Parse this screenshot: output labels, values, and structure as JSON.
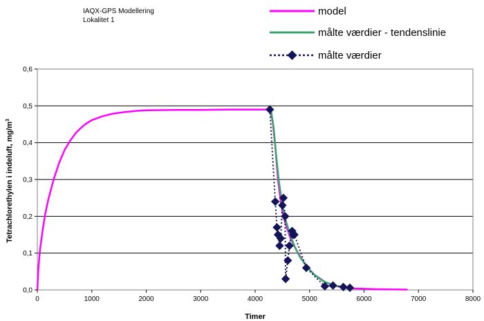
{
  "header_note": {
    "line1": "IAQX-GPS Modellering",
    "line2": "Lokalitet 1"
  },
  "chart_data": {
    "type": "line",
    "title": "",
    "xlabel": "Timer",
    "ylabel": "Tetrachlorethylen i indeluft, mg/m",
    "ylabel_superscript": "3",
    "xlim": [
      0,
      8000
    ],
    "ylim": [
      0,
      0.6
    ],
    "x_ticks": [
      "0",
      "1000",
      "2000",
      "3000",
      "4000",
      "5000",
      "6000",
      "7000",
      "8000"
    ],
    "y_ticks": [
      "0,0",
      "0,1",
      "0,2",
      "0,3",
      "0,4",
      "0,5",
      "0,6"
    ],
    "grid": "horizontal",
    "legend_position": "top-right",
    "series": [
      {
        "name": "model",
        "style": "solid",
        "color": "#ff00ff",
        "points": [
          [
            0,
            0
          ],
          [
            20,
            0.06
          ],
          [
            50,
            0.11
          ],
          [
            100,
            0.165
          ],
          [
            150,
            0.21
          ],
          [
            200,
            0.245
          ],
          [
            300,
            0.3
          ],
          [
            400,
            0.345
          ],
          [
            500,
            0.38
          ],
          [
            600,
            0.405
          ],
          [
            700,
            0.425
          ],
          [
            800,
            0.44
          ],
          [
            900,
            0.452
          ],
          [
            1000,
            0.461
          ],
          [
            1200,
            0.472
          ],
          [
            1400,
            0.479
          ],
          [
            1600,
            0.483
          ],
          [
            1800,
            0.486
          ],
          [
            2000,
            0.488
          ],
          [
            2500,
            0.489
          ],
          [
            3000,
            0.489
          ],
          [
            3500,
            0.49
          ],
          [
            4000,
            0.49
          ],
          [
            4270,
            0.49
          ],
          [
            4320,
            0.46
          ],
          [
            4370,
            0.39
          ],
          [
            4420,
            0.3
          ],
          [
            4470,
            0.24
          ],
          [
            4520,
            0.2
          ],
          [
            4580,
            0.17
          ],
          [
            4650,
            0.14
          ],
          [
            4750,
            0.11
          ],
          [
            4850,
            0.085
          ],
          [
            4950,
            0.063
          ],
          [
            5100,
            0.04
          ],
          [
            5300,
            0.02
          ],
          [
            5500,
            0.01
          ],
          [
            5800,
            0.004
          ],
          [
            6200,
            0.002
          ],
          [
            6800,
            0.001
          ]
        ]
      },
      {
        "name": "målte værdier - tendenslinie",
        "style": "solid",
        "color": "#3aa36a",
        "points": [
          [
            4290,
            0.49
          ],
          [
            4340,
            0.44
          ],
          [
            4390,
            0.36
          ],
          [
            4440,
            0.29
          ],
          [
            4500,
            0.23
          ],
          [
            4560,
            0.19
          ],
          [
            4630,
            0.155
          ],
          [
            4720,
            0.12
          ],
          [
            4820,
            0.09
          ],
          [
            4940,
            0.065
          ],
          [
            5080,
            0.042
          ],
          [
            5250,
            0.024
          ],
          [
            5450,
            0.012
          ],
          [
            5700,
            0.005
          ]
        ]
      },
      {
        "name": "målte værdier",
        "style": "dotted",
        "marker": "diamond",
        "color": "#14145a",
        "points": [
          [
            4270,
            0.49
          ],
          [
            4370,
            0.24
          ],
          [
            4400,
            0.17
          ],
          [
            4420,
            0.15
          ],
          [
            4450,
            0.12
          ],
          [
            4470,
            0.14
          ],
          [
            4500,
            0.23
          ],
          [
            4520,
            0.25
          ],
          [
            4550,
            0.2
          ],
          [
            4560,
            0.03
          ],
          [
            4600,
            0.08
          ],
          [
            4630,
            0.12
          ],
          [
            4680,
            0.16
          ],
          [
            4700,
            0.15
          ],
          [
            4720,
            0.15
          ],
          [
            4940,
            0.06
          ],
          [
            5280,
            0.01
          ],
          [
            5430,
            0.012
          ],
          [
            5620,
            0.008
          ],
          [
            5740,
            0.006
          ]
        ]
      }
    ]
  }
}
